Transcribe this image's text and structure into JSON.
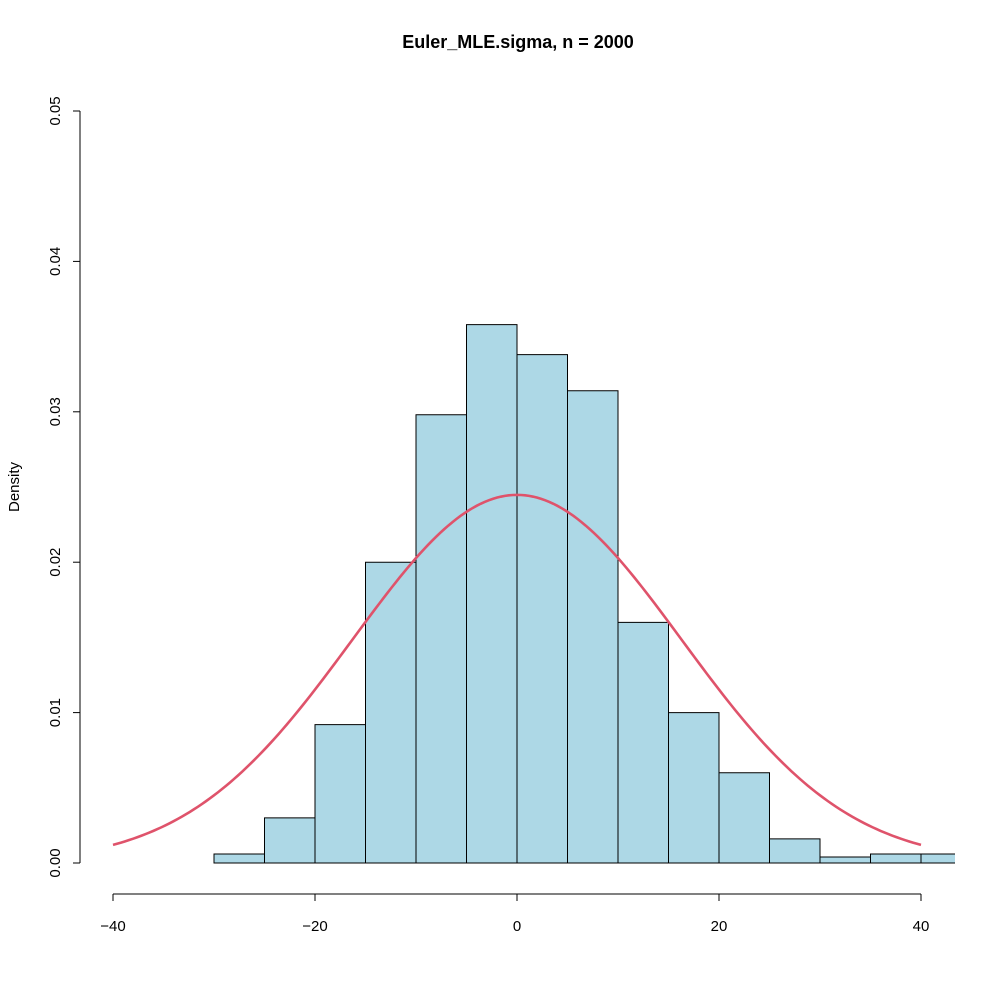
{
  "chart_data": {
    "type": "histogram",
    "title": "Euler_MLE.sigma, n = 2000",
    "xlabel": "",
    "ylabel": "Density",
    "xlim": [
      -40,
      43
    ],
    "ylim": [
      0,
      0.05
    ],
    "x_ticks": [
      -40,
      -20,
      0,
      20,
      40
    ],
    "x_tick_labels": [
      "−40",
      "−20",
      "0",
      "20",
      "40"
    ],
    "y_ticks": [
      0,
      0.01,
      0.02,
      0.03,
      0.04,
      0.05
    ],
    "y_tick_labels": [
      "0.00",
      "0.01",
      "0.02",
      "0.03",
      "0.04",
      "0.05"
    ],
    "grid": false,
    "bars": {
      "fill": "#add8e6",
      "stroke": "#000000",
      "bin_edges": [
        -30,
        -25,
        -20,
        -15,
        -10,
        -5,
        0,
        5,
        10,
        15,
        20,
        25,
        30,
        35,
        40,
        45
      ],
      "density": [
        0.0006,
        0.003,
        0.0092,
        0.02,
        0.0298,
        0.0358,
        0.0338,
        0.0314,
        0.016,
        0.01,
        0.006,
        0.0016,
        0.0004,
        0.0006,
        0.0006
      ]
    },
    "curve": {
      "type": "normal_density",
      "color": "#df536b",
      "mean": 0,
      "sd": 16.3,
      "x_range": [
        -40,
        40
      ]
    }
  }
}
